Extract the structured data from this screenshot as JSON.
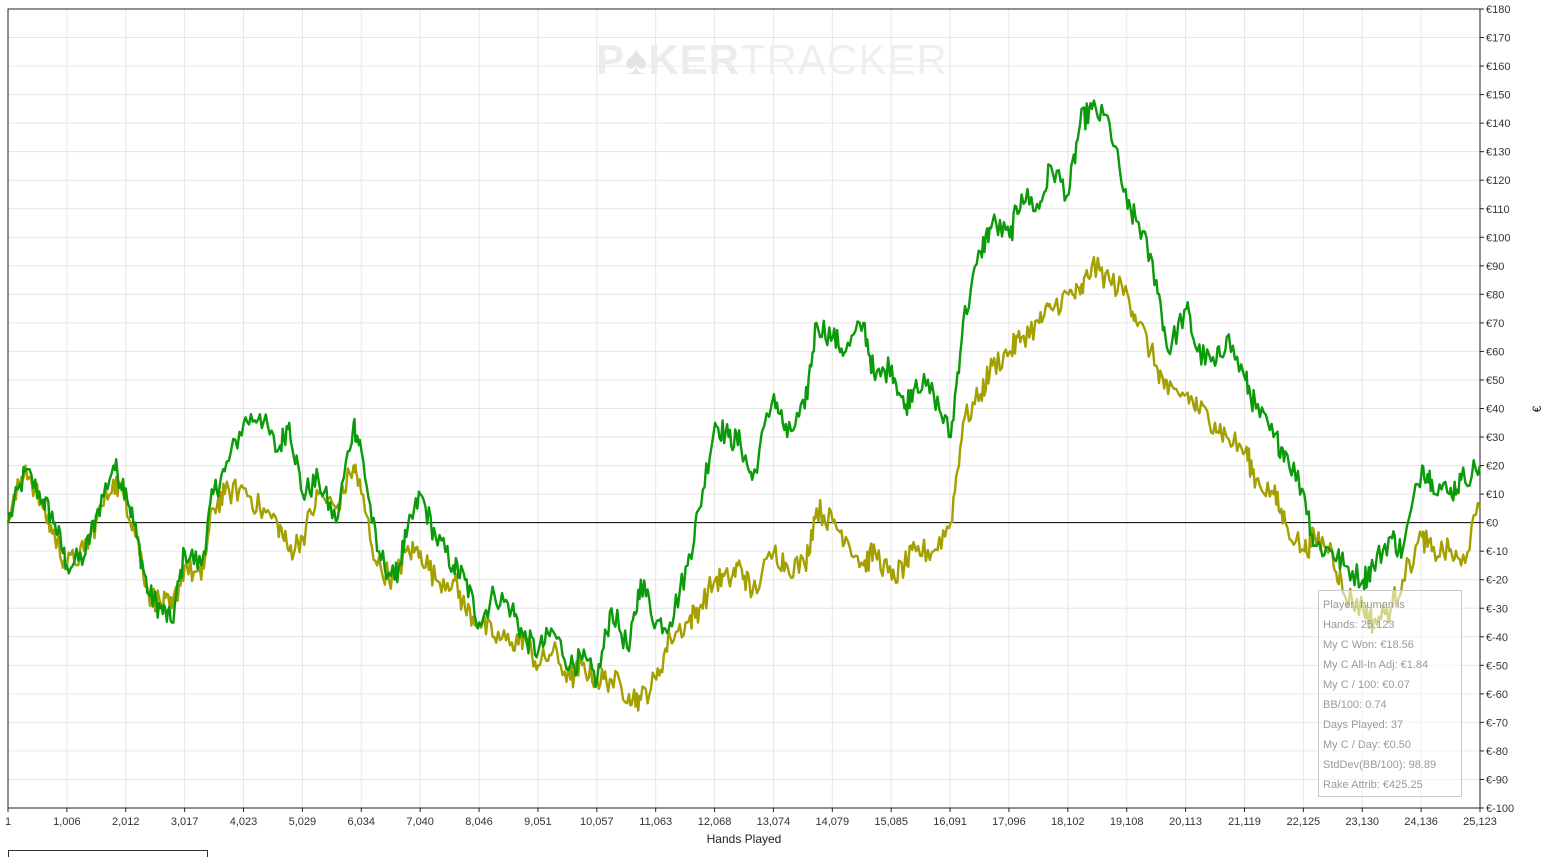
{
  "watermark": {
    "left": "P",
    "chip": "♠",
    "mid": "KER",
    "right": "TRACKER"
  },
  "stats": {
    "player": "Player: human is",
    "hands": "Hands: 25,123",
    "won": "My C Won: €18.56",
    "allin_adj": "My C All-In Adj: €1.84",
    "per100": "My C / 100: €0.07",
    "bb100": "BB/100: 0.74",
    "days": "Days Played: 37",
    "per_day": "My C / Day: €0.50",
    "stddev": "StdDev(BB/100): 98.89",
    "rake": "Rake Attrib: €425.25"
  },
  "colors": {
    "allin_line": "#0a9a0a",
    "won_line": "#a3a000",
    "zero_line": "#000000",
    "grid": "#e6e6e6"
  },
  "chart_data": {
    "type": "line",
    "xlabel": "Hands Played",
    "ylabel": "€",
    "xlim": [
      1,
      25123
    ],
    "ylim": [
      -100,
      180
    ],
    "x_ticks": [
      "1",
      "1,006",
      "2,012",
      "3,017",
      "4,023",
      "5,029",
      "6,034",
      "7,040",
      "8,046",
      "9,051",
      "10,057",
      "11,063",
      "12,068",
      "13,074",
      "14,079",
      "15,085",
      "16,091",
      "17,096",
      "18,102",
      "19,108",
      "20,113",
      "21,119",
      "22,125",
      "23,130",
      "24,136",
      "25,123"
    ],
    "y_ticks": [
      "€-100",
      "€-90",
      "€-80",
      "€-70",
      "€-60",
      "€-50",
      "€-40",
      "€-30",
      "€-20",
      "€-10",
      "€0",
      "€10",
      "€20",
      "€30",
      "€40",
      "€50",
      "€60",
      "€70",
      "€80",
      "€90",
      "€100",
      "€110",
      "€120",
      "€130",
      "€140",
      "€150",
      "€160",
      "€170",
      "€180"
    ],
    "y_tick_values": [
      -100,
      -90,
      -80,
      -70,
      -60,
      -50,
      -40,
      -30,
      -20,
      -10,
      0,
      10,
      20,
      30,
      40,
      50,
      60,
      70,
      80,
      90,
      100,
      110,
      120,
      130,
      140,
      150,
      160,
      170,
      180
    ],
    "x": [
      1,
      300,
      600,
      800,
      1006,
      1300,
      1500,
      1800,
      2012,
      2200,
      2400,
      2600,
      2800,
      3017,
      3300,
      3500,
      3700,
      4023,
      4300,
      4600,
      4800,
      5029,
      5300,
      5600,
      5900,
      6034,
      6300,
      6600,
      6800,
      7040,
      7300,
      7600,
      7800,
      8046,
      8300,
      8600,
      8800,
      9051,
      9300,
      9600,
      9800,
      10057,
      10300,
      10600,
      10800,
      11063,
      11300,
      11600,
      11800,
      12068,
      12300,
      12500,
      12700,
      13074,
      13300,
      13600,
      13800,
      14079,
      14300,
      14600,
      14800,
      15085,
      15300,
      15500,
      15800,
      16091,
      16300,
      16600,
      16800,
      17096,
      17300,
      17600,
      17800,
      18102,
      18300,
      18500,
      18800,
      19108,
      19300,
      19600,
      19800,
      20113,
      20300,
      20600,
      20800,
      21119,
      21300,
      21600,
      21800,
      22125,
      22300,
      22600,
      22800,
      23130,
      23300,
      23600,
      23800,
      24136,
      24300,
      24600,
      24800,
      25123
    ],
    "series": [
      {
        "values": [
          0,
          18,
          8,
          0,
          -15,
          -12,
          2,
          20,
          12,
          -5,
          -25,
          -30,
          -35,
          -10,
          -15,
          10,
          18,
          35,
          38,
          25,
          35,
          10,
          15,
          0,
          35,
          25,
          -10,
          -20,
          -5,
          10,
          -5,
          -15,
          -20,
          -35,
          -25,
          -30,
          -40,
          -45,
          -38,
          -50,
          -48,
          -55,
          -30,
          -45,
          -20,
          -35,
          -35,
          -15,
          5,
          35,
          30,
          28,
          15,
          45,
          30,
          40,
          70,
          65,
          60,
          70,
          50,
          55,
          40,
          50,
          45,
          30,
          70,
          95,
          105,
          100,
          115,
          110,
          125,
          115,
          140,
          145,
          140,
          110,
          105,
          85,
          60,
          75,
          60,
          55,
          65,
          50,
          40,
          30,
          25,
          10,
          -8,
          -10,
          -15,
          -20,
          -15,
          -5,
          -10,
          20,
          15,
          10,
          15,
          20
        ]
      },
      {
        "values": [
          0,
          20,
          5,
          -5,
          -15,
          -10,
          0,
          15,
          8,
          -5,
          -25,
          -28,
          -30,
          -15,
          -20,
          5,
          10,
          12,
          5,
          0,
          -10,
          -5,
          10,
          5,
          20,
          10,
          -15,
          -20,
          -10,
          -10,
          -20,
          -20,
          -30,
          -35,
          -40,
          -42,
          -40,
          -50,
          -45,
          -55,
          -50,
          -55,
          -55,
          -60,
          -62,
          -55,
          -40,
          -35,
          -30,
          -20,
          -20,
          -15,
          -25,
          -10,
          -15,
          -15,
          5,
          0,
          -5,
          -15,
          -10,
          -20,
          -15,
          -10,
          -10,
          0,
          35,
          45,
          55,
          60,
          65,
          70,
          75,
          80,
          80,
          90,
          85,
          80,
          70,
          55,
          45,
          45,
          40,
          35,
          30,
          25,
          15,
          10,
          0,
          -10,
          -5,
          -10,
          -25,
          -30,
          -35,
          -30,
          -20,
          -5,
          -10,
          -10,
          -15,
          5
        ]
      }
    ]
  }
}
